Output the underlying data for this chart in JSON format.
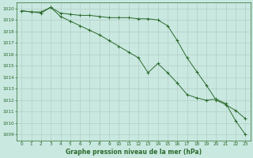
{
  "x": [
    0,
    1,
    2,
    3,
    4,
    5,
    6,
    7,
    8,
    9,
    10,
    11,
    12,
    13,
    14,
    15,
    16,
    17,
    18,
    19,
    20,
    21,
    22,
    23
  ],
  "line1": [
    1019.8,
    1019.7,
    1019.7,
    1020.1,
    1019.6,
    1019.5,
    1019.4,
    1019.4,
    1019.3,
    1019.2,
    1019.2,
    1019.2,
    1019.1,
    1019.1,
    1019.0,
    1018.5,
    1017.2,
    1015.7,
    1014.5,
    1013.3,
    1012.0,
    1011.6,
    1011.1,
    1010.4
  ],
  "line2": [
    1019.8,
    1019.7,
    1019.6,
    1020.1,
    1019.3,
    1018.9,
    1018.5,
    1018.1,
    1017.7,
    1017.2,
    1016.7,
    1016.2,
    1015.7,
    1014.4,
    1015.2,
    1014.4,
    1013.5,
    1012.5,
    1012.2,
    1012.0,
    1012.1,
    1011.7,
    1010.2,
    1009.0
  ],
  "line_color": "#2d6a2d",
  "bg_color": "#c8e8e0",
  "grid_color": "#b0c8c0",
  "xlabel": "Graphe pression niveau de la mer (hPa)",
  "ylim": [
    1008.5,
    1020.5
  ],
  "xlim_min": -0.5,
  "xlim_max": 23.5,
  "yticks": [
    1009,
    1010,
    1011,
    1012,
    1013,
    1014,
    1015,
    1016,
    1017,
    1018,
    1019,
    1020
  ],
  "xticks": [
    0,
    1,
    2,
    3,
    4,
    5,
    6,
    7,
    8,
    9,
    10,
    11,
    12,
    13,
    14,
    15,
    16,
    17,
    18,
    19,
    20,
    21,
    22,
    23
  ],
  "tick_fontsize": 4.2,
  "xlabel_fontsize": 5.5,
  "line_width": 0.7,
  "marker_size": 2.5,
  "grid_linewidth": 0.4
}
